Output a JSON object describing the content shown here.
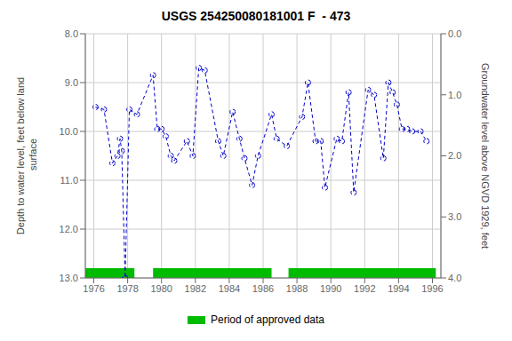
{
  "chart_data": {
    "type": "line",
    "title": "USGS 254250080181001 F  - 473",
    "ylabel": "Depth to water level, feet below land\n surface",
    "y2label": "Groundwater level above NGVD 1929, feet",
    "x": [
      1976.1,
      1976.6,
      1977.1,
      1977.4,
      1977.55,
      1977.65,
      1977.85,
      1978.1,
      1978.55,
      1979.5,
      1979.75,
      1980.0,
      1980.25,
      1980.55,
      1980.75,
      1981.5,
      1981.85,
      1982.2,
      1982.55,
      1983.35,
      1983.65,
      1984.2,
      1984.6,
      1984.9,
      1985.35,
      1985.7,
      1986.5,
      1986.8,
      1987.4,
      1988.3,
      1988.65,
      1989.1,
      1989.4,
      1989.65,
      1990.35,
      1990.65,
      1991.05,
      1991.35,
      1992.2,
      1992.55,
      1993.1,
      1993.4,
      1993.65,
      1993.9,
      1994.2,
      1994.5,
      1994.8,
      1995.3,
      1995.65
    ],
    "values": [
      9.5,
      9.55,
      10.65,
      10.5,
      10.15,
      10.4,
      13.0,
      9.55,
      9.65,
      8.85,
      9.95,
      9.95,
      10.1,
      10.5,
      10.6,
      10.2,
      10.5,
      8.7,
      8.75,
      10.2,
      10.5,
      9.6,
      10.15,
      10.55,
      11.1,
      10.5,
      9.65,
      10.15,
      10.3,
      9.7,
      9.0,
      10.2,
      10.2,
      11.15,
      10.15,
      10.2,
      9.2,
      11.25,
      9.15,
      9.25,
      10.55,
      9.0,
      9.2,
      9.45,
      9.95,
      9.95,
      10.0,
      10.0,
      10.2
    ],
    "color": "#0000cc",
    "line_style": "dashed",
    "marker": "circle",
    "xlim": [
      1975.5,
      1996.5
    ],
    "xticks": [
      1976,
      1978,
      1980,
      1982,
      1984,
      1986,
      1988,
      1990,
      1992,
      1994,
      1996
    ],
    "ylim": [
      13.0,
      8.0
    ],
    "yticks": [
      {
        "value": 8.0,
        "label": "8.0"
      },
      {
        "value": 9.0,
        "label": "9.0"
      },
      {
        "value": 10.0,
        "label": "10.0"
      },
      {
        "value": 11.0,
        "label": "11.0"
      },
      {
        "value": 12.0,
        "label": "12.0"
      },
      {
        "value": 13.0,
        "label": "13.0"
      }
    ],
    "y2lim": [
      4.0,
      0.0
    ],
    "y2ticks": [
      {
        "value": 0.0,
        "label": "0.0"
      },
      {
        "value": 1.0,
        "label": "1.0"
      },
      {
        "value": 2.0,
        "label": "2.0"
      },
      {
        "value": 3.0,
        "label": "3.0"
      },
      {
        "value": 4.0,
        "label": "4.0"
      }
    ],
    "grid": true,
    "approved_periods": {
      "name": "Period of approved data",
      "color": "#00bb00",
      "segments": [
        [
          1975.5,
          1978.4
        ],
        [
          1979.5,
          1986.5
        ],
        [
          1987.5,
          1996.2
        ]
      ]
    }
  }
}
